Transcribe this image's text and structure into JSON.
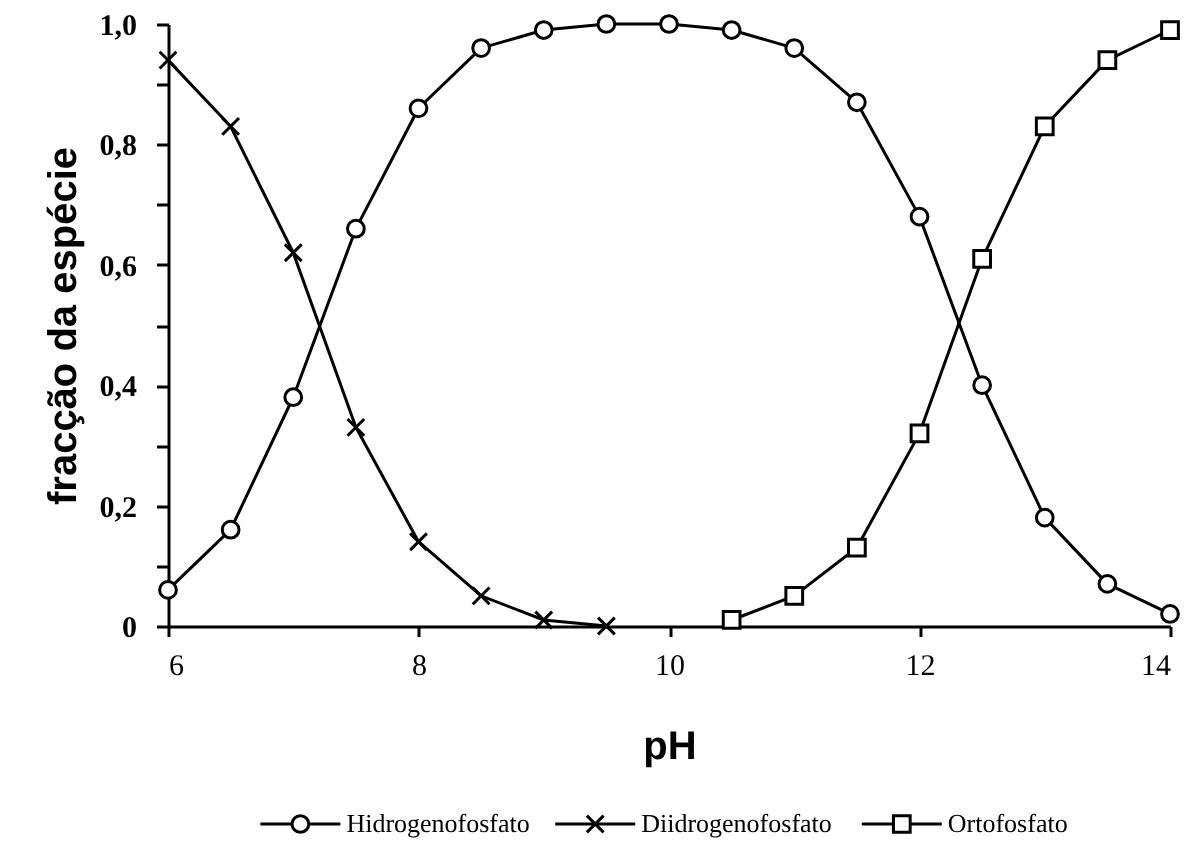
{
  "chart_data": {
    "type": "line",
    "xlabel": "pH",
    "ylabel": "fracção da espécie",
    "x": [
      6,
      6.5,
      7,
      7.5,
      8,
      8.5,
      9,
      9.5,
      10,
      10.5,
      11,
      11.5,
      12,
      12.5,
      13,
      13.5,
      14
    ],
    "series": [
      {
        "name": "Hidrogenofosfato",
        "color": "#000000",
        "marker": "circle",
        "values": [
          0.06,
          0.16,
          0.38,
          0.66,
          0.86,
          0.96,
          0.99,
          1.0,
          1.0,
          0.99,
          0.96,
          0.87,
          0.68,
          0.4,
          0.18,
          0.07,
          0.02
        ]
      },
      {
        "name": "Diidrogenofosfato",
        "color": "#000000",
        "marker": "cross",
        "values": [
          0.94,
          0.83,
          0.62,
          0.33,
          0.14,
          0.05,
          0.01,
          0.0,
          null,
          null,
          null,
          null,
          null,
          null,
          null,
          null,
          null
        ]
      },
      {
        "name": "Ortofosfato",
        "color": "#000000",
        "marker": "square",
        "values": [
          null,
          null,
          null,
          null,
          null,
          null,
          null,
          null,
          null,
          0.01,
          0.05,
          0.13,
          0.32,
          0.61,
          0.83,
          0.94,
          0.99
        ]
      }
    ],
    "xlim": [
      6,
      14
    ],
    "xticks": [
      6,
      8,
      10,
      12,
      14
    ],
    "ylim": [
      0,
      1.0
    ],
    "yticks": [
      0,
      {
        "value": 0.1,
        "label": null
      },
      {
        "value": 0.2,
        "label": "0,2"
      },
      {
        "value": 0.3,
        "label": null
      },
      {
        "value": 0.4,
        "label": "0,4"
      },
      {
        "value": 0.5,
        "label": null
      },
      {
        "value": 0.6,
        "label": "0,6"
      },
      {
        "value": 0.7,
        "label": null
      },
      {
        "value": 0.8,
        "label": "0,8"
      },
      {
        "value": 0.9,
        "label": null
      },
      {
        "value": 1.0,
        "label": "1,0"
      }
    ],
    "grid": false,
    "legend": "bottom"
  }
}
